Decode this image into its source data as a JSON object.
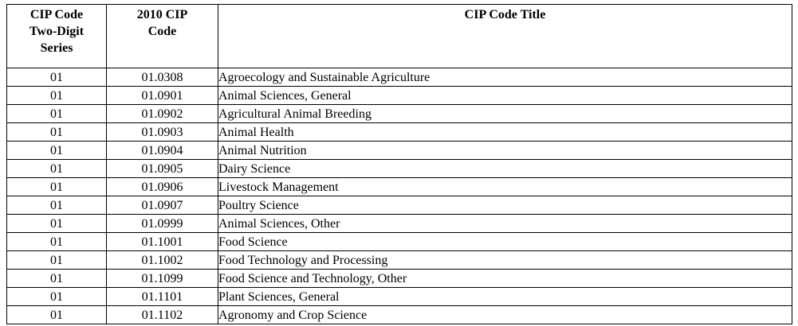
{
  "table": {
    "headers": {
      "series": [
        "CIP Code",
        "Two-Digit",
        "Series"
      ],
      "code": [
        "2010 CIP",
        "Code"
      ],
      "title": "CIP Code Title"
    },
    "rows": [
      {
        "series": "01",
        "code": "01.0308",
        "title": "Agroecology and Sustainable Agriculture"
      },
      {
        "series": "01",
        "code": "01.0901",
        "title": "Animal Sciences, General"
      },
      {
        "series": "01",
        "code": "01.0902",
        "title": "Agricultural Animal Breeding"
      },
      {
        "series": "01",
        "code": "01.0903",
        "title": "Animal Health"
      },
      {
        "series": "01",
        "code": "01.0904",
        "title": "Animal Nutrition"
      },
      {
        "series": "01",
        "code": "01.0905",
        "title": "Dairy Science"
      },
      {
        "series": "01",
        "code": "01.0906",
        "title": "Livestock Management"
      },
      {
        "series": "01",
        "code": "01.0907",
        "title": "Poultry Science"
      },
      {
        "series": "01",
        "code": "01.0999",
        "title": "Animal Sciences, Other"
      },
      {
        "series": "01",
        "code": "01.1001",
        "title": "Food Science"
      },
      {
        "series": "01",
        "code": "01.1002",
        "title": "Food Technology and Processing"
      },
      {
        "series": "01",
        "code": "01.1099",
        "title": "Food Science and Technology, Other"
      },
      {
        "series": "01",
        "code": "01.1101",
        "title": "Plant Sciences, General"
      },
      {
        "series": "01",
        "code": "01.1102",
        "title": "Agronomy and Crop Science"
      }
    ]
  }
}
